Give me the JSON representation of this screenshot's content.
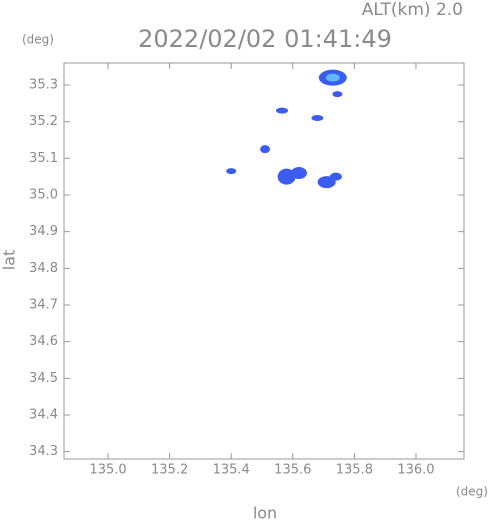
{
  "chart_data": {
    "type": "scatter",
    "title": "2022/02/02 01:41:49",
    "subtitle": "ALT(km) 2.0",
    "x_label": "lon",
    "y_label": "lat",
    "x_unit": "(deg)",
    "y_unit": "(deg)",
    "x": [
      135.73,
      135.745,
      135.565,
      135.68,
      135.51,
      135.4,
      135.58,
      135.62,
      135.71,
      135.74
    ],
    "values": [
      35.32,
      35.275,
      35.23,
      35.21,
      35.125,
      35.065,
      35.05,
      35.06,
      35.035,
      35.05
    ],
    "color": "#3a5cf0",
    "xlim": [
      134.857,
      136.156
    ],
    "ylim": [
      34.28,
      35.36
    ],
    "xticks": [
      {
        "value": 135.0,
        "label": "135.0"
      },
      135.2,
      135.4,
      135.6,
      135.8,
      {
        "value": 136.0,
        "label": "136.0"
      }
    ],
    "yticks": [
      35.3,
      35.2,
      35.1,
      {
        "value": 35.0,
        "label": "35.0"
      },
      34.9,
      34.8,
      34.7,
      34.6,
      34.5,
      34.4,
      34.3
    ]
  }
}
